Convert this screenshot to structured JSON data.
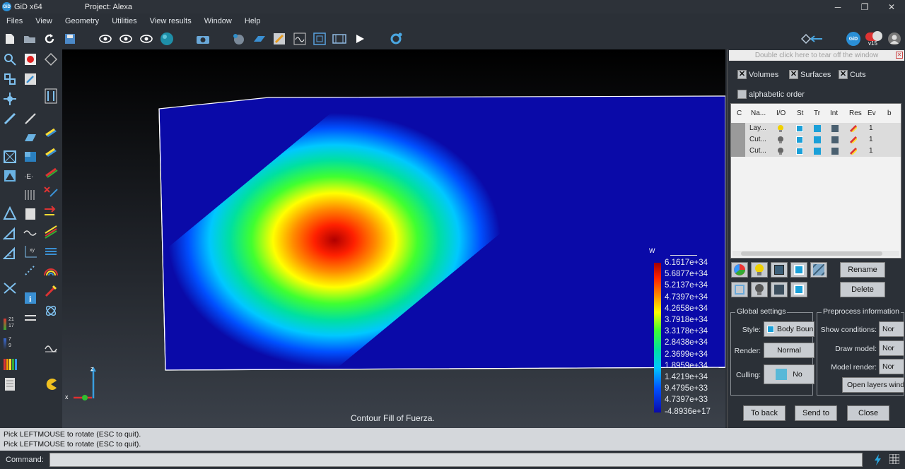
{
  "titlebar": {
    "app": "GiD x64",
    "project": "Project: Alexa",
    "logo": "GiD",
    "min": "─",
    "max": "❐",
    "close": "✕"
  },
  "menu": [
    "Files",
    "View",
    "Geometry",
    "Utilities",
    "View results",
    "Window",
    "Help"
  ],
  "toolbar_icons": [
    "new-file-icon",
    "open-folder-icon",
    "refresh-icon",
    "save-icon",
    "eye-icon",
    "eye-icon",
    "eye-icon",
    "sphere-icon",
    "camera-icon",
    "mesh-icon",
    "surface-icon",
    "result-icon",
    "graph-icon",
    "frame-icon",
    "film-icon",
    "play-icon",
    "gear-icon"
  ],
  "toolbar_right": {
    "version": "v15",
    "gid": "GiD"
  },
  "panel": {
    "tearoff": "Double click here to tear off the window",
    "check_volumes": "Volumes",
    "check_surfaces": "Surfaces",
    "check_cuts": "Cuts",
    "check_alpha": "alphabetic order",
    "columns": [
      "C",
      "Na...",
      "I/O",
      "St",
      "Tr",
      "Int",
      "Res",
      "Ev",
      "b"
    ],
    "rows": [
      {
        "name": "Lay...",
        "ev": "1"
      },
      {
        "name": "Cut...",
        "ev": "1"
      },
      {
        "name": "Cut...",
        "ev": "1"
      }
    ],
    "rename": "Rename",
    "delete": "Delete",
    "global_settings": "Global settings",
    "style_label": "Style:",
    "style_value": "Body Boun",
    "render_label": "Render:",
    "render_value": "Normal",
    "culling_label": "Culling:",
    "culling_value": "No",
    "preprocess": "Preprocess information",
    "show_conditions": "Show conditions:",
    "show_conditions_value": "Nor",
    "draw_model": "Draw model:",
    "draw_model_value": "Nor",
    "model_render": "Model render:",
    "model_render_value": "Nor",
    "open_layers": "Open layers windo",
    "to_back": "To back",
    "send_to": "Send to",
    "close": "Close"
  },
  "viewport": {
    "caption": "Contour Fill of Fuerza.",
    "legend_title": "W",
    "legend_ticks": [
      "6.1617e+34",
      "5.6877e+34",
      "5.2137e+34",
      "4.7397e+34",
      "4.2658e+34",
      "3.7918e+34",
      "3.3178e+34",
      "2.8438e+34",
      "2.3699e+34",
      "1.8959e+34",
      "1.4219e+34",
      "9.4795e+33",
      "4.7397e+33",
      "-4.8936e+17"
    ],
    "axis_z": "z",
    "axis_x": "x"
  },
  "left_badges": {
    "a": "21",
    "b": "17",
    "c": "7",
    "d": "9"
  },
  "status": {
    "line1": "Pick LEFTMOUSE to rotate (ESC to quit).",
    "line2": "Pick LEFTMOUSE to rotate (ESC to quit)."
  },
  "command": {
    "label": "Command:"
  }
}
